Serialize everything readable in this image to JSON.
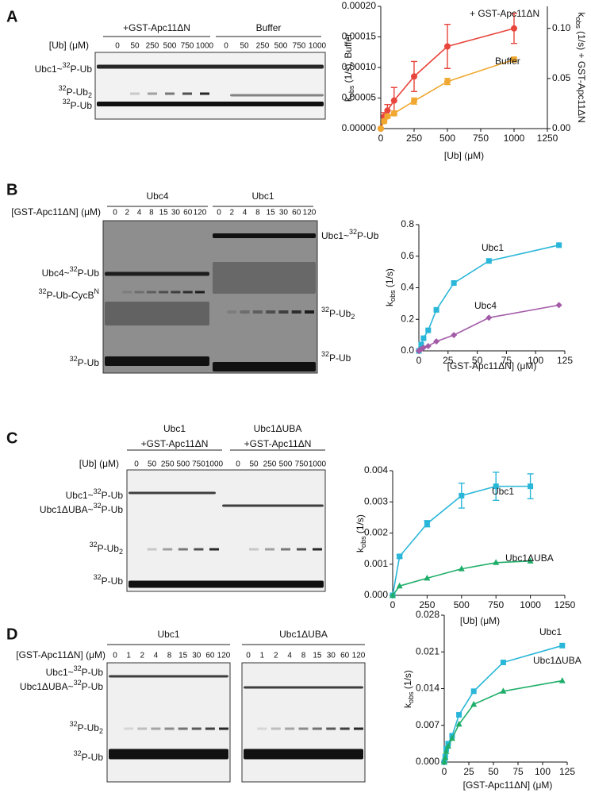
{
  "panels": [
    {
      "label": "A",
      "groups": [
        [
          "+GST-Apc11ΔN"
        ],
        [
          "Buffer"
        ]
      ],
      "conc_label": "[Ub] (μM)",
      "concentrations": [
        0,
        50,
        250,
        500,
        750,
        1000
      ],
      "bands_left": [
        [
          "Ubc1~",
          {
            "sup": "32"
          },
          "P-Ub"
        ],
        [
          {
            "sup": "32"
          },
          "P-Ub",
          {
            "sub": "2"
          }
        ],
        [
          {
            "sup": "32"
          },
          "P-Ub"
        ]
      ],
      "bands_right": []
    },
    {
      "label": "B",
      "groups": [
        [
          "Ubc4"
        ],
        [
          "Ubc1"
        ]
      ],
      "conc_label": "[GST-Apc11ΔN] (μM)",
      "concentrations": [
        0,
        2,
        4,
        8,
        15,
        30,
        60,
        120
      ],
      "bands_left": [
        [
          "Ubc4~",
          {
            "sup": "32"
          },
          "P-Ub"
        ],
        [
          {
            "sup": "32"
          },
          "P-Ub-CycB",
          {
            "sup": "N"
          }
        ],
        [
          {
            "sup": "32"
          },
          "P-Ub"
        ]
      ],
      "bands_right": [
        [
          "Ubc1~",
          {
            "sup": "32"
          },
          "P-Ub"
        ],
        [
          {
            "sup": "32"
          },
          "P-Ub",
          {
            "sub": "2"
          }
        ],
        [
          {
            "sup": "32"
          },
          "P-Ub"
        ]
      ]
    },
    {
      "label": "C",
      "groups": [
        [
          "Ubc1",
          "+GST-Apc11ΔN"
        ],
        [
          "Ubc1ΔUBA",
          "+GST-Apc11ΔN"
        ]
      ],
      "conc_label": "[Ub] (μM)",
      "concentrations": [
        0,
        50,
        250,
        500,
        750,
        1000
      ],
      "bands_left": [
        [
          "Ubc1~",
          {
            "sup": "32"
          },
          "P-Ub"
        ],
        [
          "Ubc1ΔUBA~",
          {
            "sup": "32"
          },
          "P-Ub"
        ],
        [
          {
            "sup": "32"
          },
          "P-Ub",
          {
            "sub": "2"
          }
        ],
        [
          {
            "sup": "32"
          },
          "P-Ub"
        ]
      ],
      "bands_right": []
    },
    {
      "label": "D",
      "groups": [
        [
          "Ubc1"
        ],
        [
          "Ubc1ΔUBA"
        ]
      ],
      "conc_label": "[GST-Apc11ΔN] (μM)",
      "concentrations": [
        0,
        1,
        2,
        4,
        8,
        15,
        30,
        60,
        120
      ],
      "bands_left": [
        [
          "Ubc1~",
          {
            "sup": "32"
          },
          "P-Ub"
        ],
        [
          "Ubc1ΔUBA~",
          {
            "sup": "32"
          },
          "P-Ub"
        ],
        [
          {
            "sup": "32"
          },
          "P-Ub",
          {
            "sub": "2"
          }
        ],
        [
          {
            "sup": "32"
          },
          "P-Ub"
        ]
      ],
      "bands_right": []
    }
  ],
  "chart_data": [
    {
      "type": "scatter",
      "x_label": "[Ub] (μM)",
      "y_label": [
        "k",
        {
          "sub": "obs"
        },
        " (1/s), Buffer"
      ],
      "y2_label": [
        "k",
        {
          "sub": "obs"
        },
        " (1/s) + GST-Apc11ΔN"
      ],
      "xlim": [
        0,
        1250
      ],
      "xticks": [
        0,
        250,
        500,
        750,
        1000,
        1250
      ],
      "ylim": [
        0,
        0.0002
      ],
      "yticks": [
        {
          "value": 0,
          "label": "0.00000"
        },
        {
          "value": 5e-05,
          "label": "0.00005"
        },
        {
          "value": 0.0001,
          "label": "0.00010"
        },
        {
          "value": 0.00015,
          "label": "0.00015"
        },
        {
          "value": 0.0002,
          "label": "0.00020"
        }
      ],
      "y2lim": [
        0,
        0.122
      ],
      "y2ticks": [
        {
          "value": 0,
          "label": "0.00"
        },
        {
          "value": 0.05,
          "label": "0.05"
        },
        {
          "value": 0.1,
          "label": "0.10"
        }
      ],
      "series": [
        {
          "name": "+ GST-Apc11ΔN",
          "color": "#e8463c",
          "marker": "circle",
          "axis": "y2",
          "x": [
            0,
            25,
            50,
            100,
            250,
            500,
            1000
          ],
          "values": [
            0,
            0.012,
            0.018,
            0.028,
            0.052,
            0.082,
            0.1
          ],
          "errors": [
            0,
            0.004,
            0.006,
            0.013,
            0.015,
            0.022,
            0.015
          ]
        },
        {
          "name": "Buffer",
          "color": "#f0a830",
          "marker": "circle",
          "axis": "y",
          "x": [
            0,
            25,
            50,
            100,
            250,
            500,
            1000
          ],
          "values": [
            0,
            1.2e-05,
            2e-05,
            2.5e-05,
            4.5e-05,
            7.7e-05,
            0.000113
          ],
          "errors": [
            0,
            3e-06,
            3e-06,
            4e-06,
            5e-06,
            5e-06,
            4e-06
          ]
        }
      ]
    },
    {
      "type": "scatter",
      "x_label": "[GST-Apc11ΔN] (μM)",
      "y_label": [
        "k",
        {
          "sub": "obs"
        },
        " (1/s)"
      ],
      "xlim": [
        0,
        125
      ],
      "xticks": [
        0,
        25,
        50,
        75,
        100,
        125
      ],
      "ylim": [
        0,
        0.8
      ],
      "yticks": [
        {
          "value": 0,
          "label": "0.0"
        },
        0.2,
        0.4,
        0.6,
        0.8
      ],
      "series": [
        {
          "name": "Ubc1",
          "color": "#29b6d8",
          "marker": "square",
          "x": [
            0,
            2,
            4,
            8,
            15,
            30,
            60,
            120
          ],
          "values": [
            0,
            0.04,
            0.08,
            0.13,
            0.26,
            0.43,
            0.57,
            0.67
          ]
        },
        {
          "name": "Ubc4",
          "color": "#a35ba8",
          "marker": "diamond",
          "x": [
            0,
            2,
            4,
            8,
            15,
            30,
            60,
            120
          ],
          "values": [
            0,
            0.01,
            0.02,
            0.03,
            0.06,
            0.1,
            0.21,
            0.29
          ]
        }
      ]
    },
    {
      "type": "scatter",
      "x_label": "[Ub] (μM)",
      "y_label": [
        "k",
        {
          "sub": "obs"
        },
        " (1/s)"
      ],
      "xlim": [
        0,
        1250
      ],
      "xticks": [
        0,
        250,
        500,
        750,
        1000,
        1250
      ],
      "ylim": [
        0,
        0.004
      ],
      "yticks": [
        {
          "value": 0,
          "label": "0.000"
        },
        {
          "value": 0.001,
          "label": "0.001"
        },
        {
          "value": 0.002,
          "label": "0.002"
        },
        {
          "value": 0.003,
          "label": "0.003"
        },
        {
          "value": 0.004,
          "label": "0.004"
        }
      ],
      "series": [
        {
          "name": "Ubc1",
          "color": "#29b6d8",
          "marker": "square",
          "x": [
            0,
            50,
            250,
            500,
            750,
            1000
          ],
          "values": [
            0,
            0.00125,
            0.0023,
            0.0032,
            0.0035,
            0.0035
          ],
          "errors": [
            0,
            5e-05,
            0.0001,
            0.0004,
            0.00045,
            0.0004
          ]
        },
        {
          "name": "Ubc1ΔUBA",
          "color": "#1fae6a",
          "marker": "triangle",
          "x": [
            0,
            50,
            250,
            500,
            750,
            1000
          ],
          "values": [
            0,
            0.0003,
            0.00055,
            0.00085,
            0.00105,
            0.0011
          ]
        }
      ]
    },
    {
      "type": "scatter",
      "x_label": "[GST-Apc11ΔN] (μM)",
      "y_label": [
        "k",
        {
          "sub": "obs"
        },
        " (1/s)"
      ],
      "xlim": [
        0,
        125
      ],
      "xticks": [
        0,
        25,
        50,
        75,
        100,
        125
      ],
      "ylim": [
        0,
        0.028
      ],
      "yticks": [
        {
          "value": 0,
          "label": "0.000"
        },
        0.007,
        0.014,
        0.021,
        0.028
      ],
      "series": [
        {
          "name": "Ubc1",
          "color": "#29b6d8",
          "marker": "square",
          "x": [
            0,
            1,
            2,
            4,
            8,
            15,
            30,
            60,
            120
          ],
          "values": [
            0,
            0.001,
            0.0025,
            0.0035,
            0.005,
            0.009,
            0.0135,
            0.019,
            0.0222
          ]
        },
        {
          "name": "Ubc1ΔUBA",
          "color": "#1fae6a",
          "marker": "triangle",
          "x": [
            0,
            1,
            2,
            4,
            8,
            15,
            30,
            60,
            120
          ],
          "values": [
            0,
            0.0008,
            0.002,
            0.003,
            0.0045,
            0.0072,
            0.011,
            0.0135,
            0.0155
          ]
        }
      ]
    }
  ]
}
